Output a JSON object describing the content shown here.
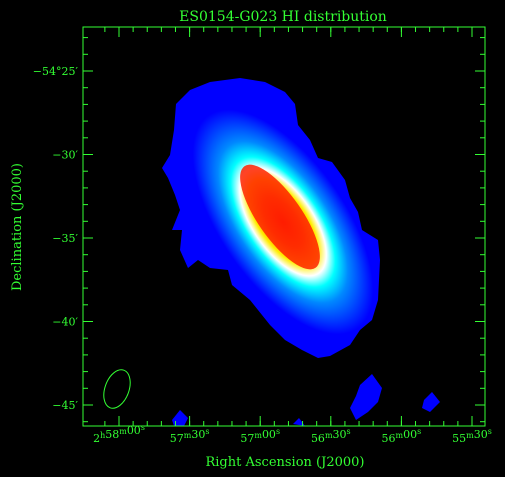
{
  "figure": {
    "title": "ES0154-G023  HI distribution",
    "xlabel": "Right Ascension (J2000)",
    "ylabel": "Declination (J2000)",
    "axis_color": "#33ff33",
    "background_color": "#000000"
  },
  "ra_ticks": [
    {
      "h": "2",
      "m": "58",
      "s": "00",
      "value_s": 10680
    },
    {
      "m": "57",
      "s": "30",
      "value_s": 10650
    },
    {
      "m": "57",
      "s": "00",
      "value_s": 10620
    },
    {
      "m": "56",
      "s": "30",
      "value_s": 10590
    },
    {
      "m": "56",
      "s": "00",
      "value_s": 10560
    },
    {
      "m": "55",
      "s": "30",
      "value_s": 10530
    }
  ],
  "dec_ticks": [
    {
      "label": "−54°25′",
      "value_arcmin": -25
    },
    {
      "label": "−30′",
      "value_arcmin": -30
    },
    {
      "label": "−35′",
      "value_arcmin": -35
    },
    {
      "label": "−40′",
      "value_arcmin": -40
    },
    {
      "label": "−45′",
      "value_arcmin": -45
    }
  ],
  "image": {
    "colormap": [
      "#0000ff",
      "#00ffff",
      "#ffffff",
      "#ffff00",
      "#ff8800",
      "#ff0000"
    ],
    "source_center_ra_s": 10605,
    "source_center_dec_arcmin": -34.5,
    "position_angle_deg": 35,
    "beam_shape": "ellipse"
  }
}
